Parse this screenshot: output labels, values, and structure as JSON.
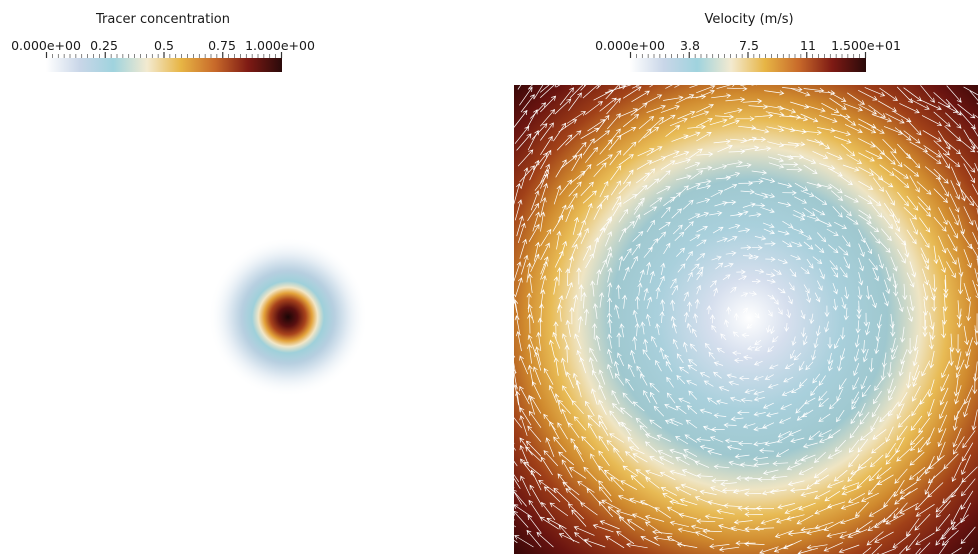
{
  "tracer": {
    "title": "Tracer concentration",
    "ticks": [
      "0.000e+00",
      "0.25",
      "0.5",
      "0.75",
      "1.000e+00"
    ],
    "colormap": [
      "#ffffff",
      "#c9d6e8",
      "#9fd3de",
      "#f3ead0",
      "#e7b545",
      "#c86a2a",
      "#7e1a14",
      "#2a0a0a"
    ]
  },
  "velocity": {
    "title": "Velocity (m/s)",
    "ticks": [
      "0.000e+00",
      "3.8",
      "7.5",
      "11",
      "1.500e+01"
    ],
    "colormap": [
      "#ffffff",
      "#c9d6e8",
      "#9fd3de",
      "#f3ead0",
      "#e7b545",
      "#c86a2a",
      "#7e1a14",
      "#2a0a0a"
    ],
    "arrow_color": "#ffffff"
  }
}
